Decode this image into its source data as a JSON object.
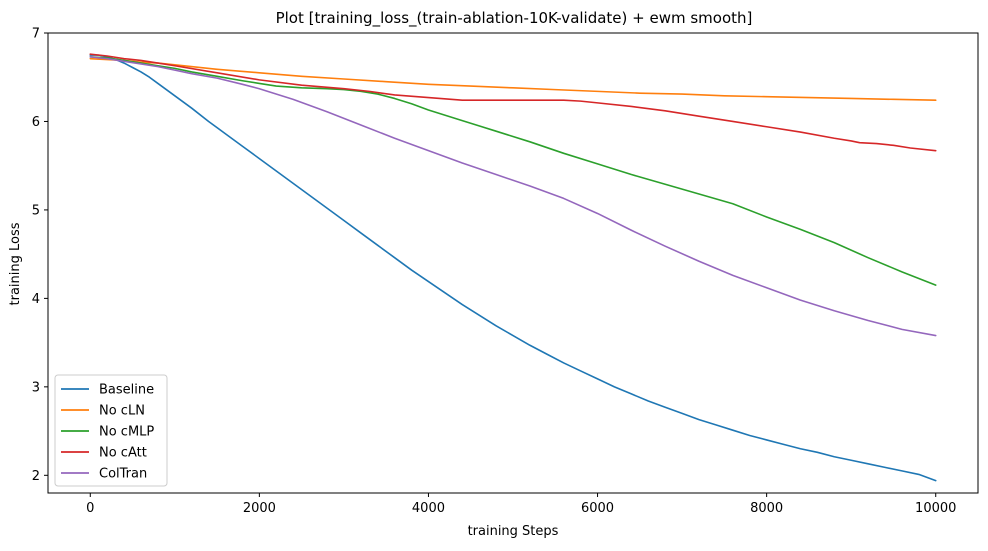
{
  "chart_data": {
    "type": "line",
    "title": "Plot [training_loss_(train-ablation-10K-validate) + ewm smooth]",
    "xlabel": "training Steps",
    "ylabel": "training Loss",
    "xlim": [
      -500,
      10500
    ],
    "ylim": [
      1.8,
      7.0
    ],
    "xticks": [
      0,
      2000,
      4000,
      6000,
      8000,
      10000
    ],
    "yticks": [
      2,
      3,
      4,
      5,
      6,
      7
    ],
    "grid": false,
    "legend": {
      "position": "lower-left"
    },
    "series": [
      {
        "name": "Baseline",
        "color": "#1f77b4",
        "x": [
          0,
          100,
          200,
          300,
          400,
          500,
          600,
          700,
          800,
          1000,
          1200,
          1400,
          1600,
          1800,
          2000,
          2200,
          2400,
          2600,
          2800,
          3000,
          3200,
          3400,
          3600,
          3800,
          4000,
          4200,
          4400,
          4600,
          4800,
          5000,
          5200,
          5400,
          5600,
          5800,
          6000,
          6200,
          6400,
          6600,
          6800,
          7000,
          7200,
          7400,
          7600,
          7800,
          8000,
          8200,
          8400,
          8600,
          8800,
          9000,
          9200,
          9400,
          9600,
          9800,
          10000
        ],
        "y": [
          6.75,
          6.75,
          6.73,
          6.7,
          6.66,
          6.61,
          6.56,
          6.5,
          6.43,
          6.29,
          6.15,
          6.0,
          5.86,
          5.72,
          5.58,
          5.44,
          5.3,
          5.16,
          5.02,
          4.88,
          4.74,
          4.6,
          4.46,
          4.32,
          4.19,
          4.06,
          3.93,
          3.81,
          3.69,
          3.58,
          3.47,
          3.37,
          3.27,
          3.18,
          3.09,
          3.0,
          2.92,
          2.84,
          2.77,
          2.7,
          2.63,
          2.57,
          2.51,
          2.45,
          2.4,
          2.35,
          2.3,
          2.26,
          2.21,
          2.17,
          2.13,
          2.09,
          2.05,
          2.01,
          1.94
        ]
      },
      {
        "name": "No cLN",
        "color": "#ff7f0e",
        "x": [
          0,
          200,
          400,
          600,
          800,
          1000,
          1500,
          2000,
          2500,
          3000,
          3500,
          4000,
          4500,
          5000,
          5500,
          6000,
          6500,
          7000,
          7500,
          8000,
          8500,
          9000,
          9500,
          10000
        ],
        "y": [
          6.71,
          6.7,
          6.69,
          6.67,
          6.66,
          6.64,
          6.59,
          6.55,
          6.51,
          6.48,
          6.45,
          6.42,
          6.4,
          6.38,
          6.36,
          6.34,
          6.32,
          6.31,
          6.29,
          6.28,
          6.27,
          6.26,
          6.25,
          6.24
        ]
      },
      {
        "name": "No cMLP",
        "color": "#2ca02c",
        "x": [
          0,
          200,
          400,
          600,
          800,
          1000,
          1200,
          1500,
          1800,
          2000,
          2200,
          2500,
          2800,
          3000,
          3200,
          3400,
          3600,
          3800,
          4000,
          4400,
          4800,
          5200,
          5600,
          6000,
          6400,
          6800,
          7200,
          7600,
          8000,
          8400,
          8800,
          9200,
          9600,
          10000
        ],
        "y": [
          6.73,
          6.72,
          6.69,
          6.66,
          6.63,
          6.6,
          6.56,
          6.51,
          6.46,
          6.43,
          6.4,
          6.38,
          6.37,
          6.36,
          6.34,
          6.31,
          6.26,
          6.2,
          6.13,
          6.01,
          5.89,
          5.77,
          5.64,
          5.52,
          5.4,
          5.29,
          5.18,
          5.07,
          4.92,
          4.78,
          4.63,
          4.46,
          4.3,
          4.15
        ]
      },
      {
        "name": "No cAtt",
        "color": "#d62728",
        "x": [
          0,
          200,
          400,
          600,
          800,
          1000,
          1500,
          2000,
          2500,
          3000,
          3300,
          3600,
          4000,
          4400,
          4800,
          5200,
          5600,
          5800,
          6000,
          6400,
          6800,
          7200,
          7600,
          8000,
          8400,
          8800,
          9000,
          9100,
          9300,
          9500,
          9700,
          10000
        ],
        "y": [
          6.76,
          6.74,
          6.71,
          6.69,
          6.66,
          6.63,
          6.55,
          6.47,
          6.41,
          6.37,
          6.34,
          6.3,
          6.27,
          6.24,
          6.24,
          6.24,
          6.24,
          6.23,
          6.21,
          6.17,
          6.12,
          6.06,
          6.0,
          5.94,
          5.88,
          5.81,
          5.78,
          5.76,
          5.75,
          5.73,
          5.7,
          5.67
        ]
      },
      {
        "name": "ColTran",
        "color": "#9467bd",
        "x": [
          0,
          200,
          400,
          600,
          800,
          1000,
          1200,
          1500,
          1800,
          2000,
          2400,
          2800,
          3200,
          3600,
          4000,
          4400,
          4800,
          5200,
          5600,
          6000,
          6400,
          6800,
          7200,
          7600,
          8000,
          8400,
          8800,
          9200,
          9600,
          10000
        ],
        "y": [
          6.73,
          6.71,
          6.68,
          6.65,
          6.62,
          6.58,
          6.54,
          6.49,
          6.42,
          6.37,
          6.25,
          6.11,
          5.96,
          5.81,
          5.67,
          5.53,
          5.4,
          5.27,
          5.13,
          4.96,
          4.77,
          4.59,
          4.42,
          4.26,
          4.12,
          3.98,
          3.86,
          3.75,
          3.65,
          3.58
        ]
      }
    ]
  }
}
